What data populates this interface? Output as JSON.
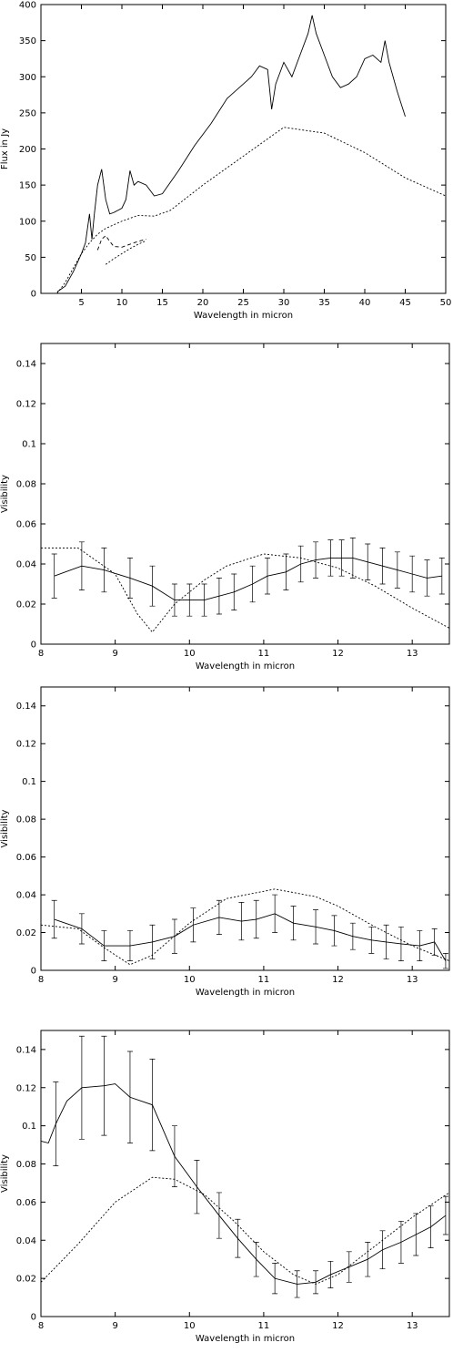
{
  "chart_data": [
    {
      "type": "line",
      "xlabel": "Wavelength in micron",
      "ylabel": "Flux in Jy",
      "xlim": [
        0,
        50
      ],
      "xticks": [
        5,
        10,
        15,
        20,
        25,
        30,
        35,
        40,
        45,
        50
      ],
      "ylim": [
        0,
        400
      ],
      "yticks": [
        0,
        50,
        100,
        150,
        200,
        250,
        300,
        350,
        400
      ],
      "series": [
        {
          "color": "#000000",
          "line_style": "solid",
          "x": [
            2,
            3,
            4,
            5,
            5.5,
            6,
            6.3,
            6.6,
            7,
            7.5,
            8,
            8.5,
            9,
            10,
            10.5,
            11,
            11.5,
            12,
            13,
            14,
            15,
            17,
            19,
            21,
            23,
            25,
            26,
            27,
            28,
            28.5,
            29,
            30,
            31,
            32,
            33,
            33.5,
            34,
            35,
            36,
            37,
            38,
            39,
            40,
            41,
            42,
            42.5,
            43,
            44,
            45
          ],
          "values": [
            2,
            10,
            30,
            55,
            70,
            110,
            75,
            110,
            150,
            172,
            130,
            110,
            112,
            118,
            130,
            170,
            150,
            155,
            150,
            135,
            138,
            170,
            205,
            235,
            270,
            290,
            300,
            315,
            310,
            255,
            290,
            320,
            300,
            330,
            360,
            385,
            360,
            330,
            300,
            285,
            290,
            300,
            325,
            330,
            320,
            350,
            320,
            280,
            245
          ]
        },
        {
          "color": "#000000",
          "line_style": "dotted",
          "x": [
            2,
            3,
            4,
            5,
            6,
            7,
            8,
            10,
            12,
            14,
            16,
            20,
            25,
            30,
            35,
            40,
            45,
            50
          ],
          "values": [
            0,
            15,
            35,
            55,
            70,
            82,
            90,
            100,
            108,
            107,
            115,
            150,
            190,
            230,
            222,
            195,
            160,
            135
          ]
        },
        {
          "color": "#000000",
          "line_style": "dashed",
          "x": [
            7,
            7.5,
            8,
            8.5,
            9,
            10,
            11,
            12,
            13
          ],
          "values": [
            60,
            75,
            80,
            72,
            65,
            64,
            68,
            72,
            75
          ]
        },
        {
          "color": "#000000",
          "line_style": "dotted",
          "x": [
            8,
            9,
            10,
            11,
            12,
            13
          ],
          "values": [
            40,
            48,
            55,
            62,
            68,
            73
          ]
        }
      ]
    },
    {
      "type": "line",
      "xlabel": "Wavelength in micron",
      "ylabel": "Visibility",
      "xlim": [
        8,
        13.5
      ],
      "xticks": [
        8,
        9,
        10,
        11,
        12,
        13
      ],
      "ylim": [
        0,
        0.15
      ],
      "yticks": [
        0,
        0.02,
        0.04,
        0.06,
        0.08,
        0.1,
        0.12,
        0.14
      ],
      "series": [
        {
          "color": "#000000",
          "line_style": "solid",
          "x": [
            8.18,
            8.55,
            8.85,
            9.2,
            9.5,
            9.8,
            10.0,
            10.2,
            10.4,
            10.6,
            10.85,
            11.05,
            11.3,
            11.5,
            11.7,
            11.9,
            12.05,
            12.2,
            12.4,
            12.6,
            12.8,
            13.0,
            13.2,
            13.4
          ],
          "values": [
            0.034,
            0.039,
            0.037,
            0.033,
            0.029,
            0.022,
            0.022,
            0.022,
            0.024,
            0.026,
            0.03,
            0.034,
            0.036,
            0.04,
            0.042,
            0.043,
            0.043,
            0.043,
            0.041,
            0.039,
            0.037,
            0.035,
            0.033,
            0.034
          ],
          "errors": [
            0.011,
            0.012,
            0.011,
            0.01,
            0.01,
            0.008,
            0.008,
            0.008,
            0.009,
            0.009,
            0.009,
            0.009,
            0.009,
            0.009,
            0.009,
            0.009,
            0.009,
            0.01,
            0.009,
            0.009,
            0.009,
            0.009,
            0.009,
            0.009
          ]
        },
        {
          "color": "#000000",
          "line_style": "dotted",
          "x": [
            8,
            8.5,
            9,
            9.3,
            9.5,
            9.8,
            10.2,
            10.5,
            11,
            11.5,
            12,
            12.5,
            13,
            13.5
          ],
          "values": [
            0.048,
            0.048,
            0.035,
            0.015,
            0.006,
            0.02,
            0.032,
            0.039,
            0.045,
            0.043,
            0.038,
            0.029,
            0.018,
            0.008
          ]
        }
      ]
    },
    {
      "type": "line",
      "xlabel": "Wavelength in micron",
      "ylabel": "Visibility",
      "xlim": [
        8,
        13.5
      ],
      "xticks": [
        8,
        9,
        10,
        11,
        12,
        13
      ],
      "ylim": [
        0,
        0.15
      ],
      "yticks": [
        0,
        0.02,
        0.04,
        0.06,
        0.08,
        0.1,
        0.12,
        0.14
      ],
      "series": [
        {
          "color": "#000000",
          "line_style": "solid",
          "x": [
            8.18,
            8.55,
            8.85,
            9.2,
            9.5,
            9.8,
            10.05,
            10.4,
            10.7,
            10.9,
            11.15,
            11.4,
            11.7,
            11.95,
            12.2,
            12.45,
            12.65,
            12.85,
            13.1,
            13.3,
            13.45
          ],
          "values": [
            0.027,
            0.022,
            0.013,
            0.013,
            0.015,
            0.018,
            0.024,
            0.028,
            0.026,
            0.027,
            0.03,
            0.025,
            0.023,
            0.021,
            0.018,
            0.016,
            0.015,
            0.014,
            0.013,
            0.015,
            0.005
          ],
          "errors": [
            0.01,
            0.008,
            0.008,
            0.008,
            0.009,
            0.009,
            0.009,
            0.009,
            0.01,
            0.01,
            0.01,
            0.009,
            0.009,
            0.008,
            0.007,
            0.007,
            0.009,
            0.009,
            0.008,
            0.007,
            0.004
          ]
        },
        {
          "color": "#000000",
          "line_style": "dotted",
          "x": [
            8,
            8.5,
            8.85,
            9.2,
            9.5,
            10,
            10.5,
            11.15,
            11.7,
            12,
            12.5,
            13,
            13.5
          ],
          "values": [
            0.024,
            0.022,
            0.012,
            0.003,
            0.008,
            0.025,
            0.038,
            0.043,
            0.039,
            0.034,
            0.023,
            0.013,
            0.005
          ]
        }
      ]
    },
    {
      "type": "line",
      "xlabel": "Wavelength in micron",
      "ylabel": "Visibility",
      "xlim": [
        8,
        13.5
      ],
      "xticks": [
        8,
        9,
        10,
        11,
        12,
        13
      ],
      "ylim": [
        0,
        0.15
      ],
      "yticks": [
        0,
        0.02,
        0.04,
        0.06,
        0.08,
        0.1,
        0.12,
        0.14
      ],
      "series": [
        {
          "color": "#000000",
          "line_style": "solid",
          "x": [
            8,
            8.1,
            8.2,
            8.35,
            8.55,
            8.85,
            9,
            9.2,
            9.5,
            9.8,
            10.1,
            10.4,
            10.65,
            10.9,
            11.15,
            11.45,
            11.7,
            11.9,
            12.15,
            12.4,
            12.6,
            12.85,
            13.05,
            13.25,
            13.45
          ],
          "values": [
            0.092,
            0.091,
            0.101,
            0.113,
            0.12,
            0.121,
            0.122,
            0.115,
            0.111,
            0.084,
            0.068,
            0.053,
            0.041,
            0.03,
            0.02,
            0.017,
            0.018,
            0.022,
            0.026,
            0.03,
            0.035,
            0.039,
            0.043,
            0.047,
            0.053
          ],
          "errors": [
            null,
            null,
            0.022,
            null,
            0.027,
            0.026,
            null,
            0.024,
            0.024,
            0.016,
            0.014,
            0.012,
            0.01,
            0.009,
            0.008,
            0.007,
            0.006,
            0.007,
            0.008,
            0.009,
            0.01,
            0.011,
            0.011,
            0.011,
            0.01
          ]
        },
        {
          "color": "#000000",
          "line_style": "dotted",
          "x": [
            8,
            8.5,
            9,
            9.5,
            9.8,
            10.2,
            10.6,
            11,
            11.4,
            11.7,
            12,
            12.5,
            13,
            13.5
          ],
          "values": [
            0.018,
            0.038,
            0.06,
            0.073,
            0.072,
            0.064,
            0.05,
            0.034,
            0.022,
            0.017,
            0.022,
            0.037,
            0.052,
            0.065
          ]
        }
      ]
    }
  ]
}
